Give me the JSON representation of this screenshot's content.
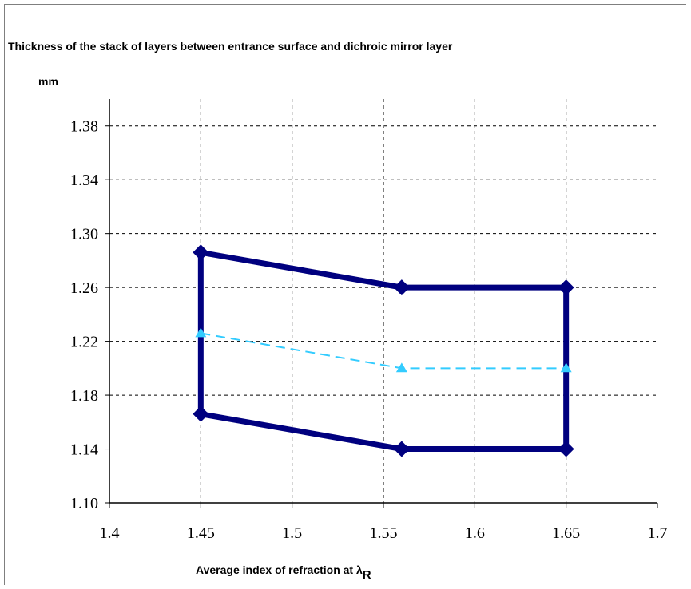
{
  "chart_data": {
    "type": "line",
    "title": "Thickness of the stack of layers between entrance surface and dichroic mirror layer",
    "ylabel": "mm",
    "xlabel_main": "Average index of refraction at λ",
    "xlabel_sub": "R",
    "xlim": [
      1.4,
      1.7
    ],
    "ylim": [
      1.1,
      1.4
    ],
    "x_ticks": [
      "1.4",
      "1.45",
      "1.5",
      "1.55",
      "1.6",
      "1.65",
      "1.7"
    ],
    "y_ticks": [
      "1.10",
      "1.14",
      "1.18",
      "1.22",
      "1.26",
      "1.30",
      "1.34",
      "1.38"
    ],
    "grid": true,
    "legend": "none",
    "series": [
      {
        "style": "solid-diamond",
        "color": "#00007f",
        "points": [
          [
            1.45,
            1.286
          ],
          [
            1.56,
            1.26
          ],
          [
            1.65,
            1.26
          ],
          [
            1.65,
            1.14
          ],
          [
            1.56,
            1.14
          ],
          [
            1.45,
            1.166
          ],
          [
            1.45,
            1.286
          ]
        ]
      },
      {
        "style": "dashed-triangle",
        "color": "#33ccff",
        "points": [
          [
            1.45,
            1.226
          ],
          [
            1.56,
            1.2
          ],
          [
            1.65,
            1.2
          ]
        ]
      }
    ]
  }
}
